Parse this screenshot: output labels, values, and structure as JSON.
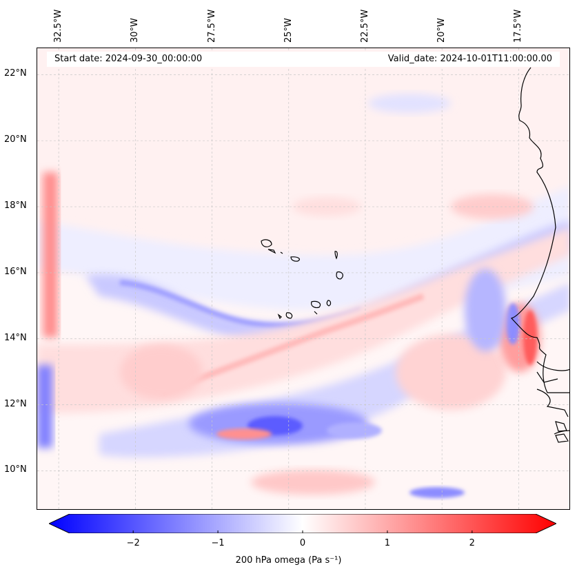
{
  "map": {
    "start_date_text": "Start date: 2024-09-30_00:00:00",
    "valid_date_text": "Valid_date: 2024-10-01T11:00:00.00",
    "extent": {
      "lon_min": -33.2,
      "lon_max": -15.8,
      "lat_min": 8.8,
      "lat_max": 22.8
    },
    "gridlines": true,
    "lon_ticks": [
      {
        "lon": -32.5,
        "label": "32.5°W"
      },
      {
        "lon": -30.0,
        "label": "30°W"
      },
      {
        "lon": -27.5,
        "label": "27.5°W"
      },
      {
        "lon": -25.0,
        "label": "25°W"
      },
      {
        "lon": -22.5,
        "label": "22.5°W"
      },
      {
        "lon": -20.0,
        "label": "20°W"
      },
      {
        "lon": -17.5,
        "label": "17.5°W"
      }
    ],
    "lat_ticks": [
      {
        "lat": 22,
        "label": "22°N"
      },
      {
        "lat": 20,
        "label": "20°N"
      },
      {
        "lat": 18,
        "label": "18°N"
      },
      {
        "lat": 16,
        "label": "16°N"
      },
      {
        "lat": 14,
        "label": "14°N"
      },
      {
        "lat": 12,
        "label": "12°N"
      },
      {
        "lat": 10,
        "label": "10°N"
      }
    ]
  },
  "colorbar": {
    "label": "200 hPa omega (Pa s⁻¹)",
    "min": -2.75,
    "max": 2.75,
    "colormap": "bwr",
    "extend": "both",
    "ticks": [
      {
        "value": -2,
        "label": "−2"
      },
      {
        "value": -1,
        "label": "−1"
      },
      {
        "value": 0,
        "label": "0"
      },
      {
        "value": 1,
        "label": "1"
      },
      {
        "value": 2,
        "label": "2"
      }
    ]
  },
  "colors": {
    "negative": "#0000ff",
    "positive": "#ff0000",
    "neutral": "#ffffff",
    "coastline": "#000000"
  }
}
